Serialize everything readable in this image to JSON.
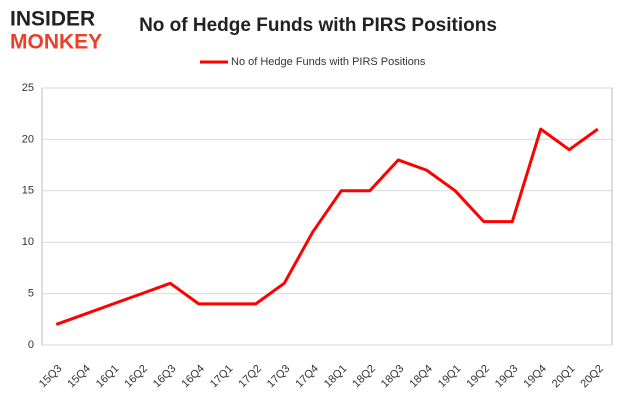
{
  "logo": {
    "line1": "INSIDER",
    "line2": "MONKEY"
  },
  "chart_data": {
    "type": "line",
    "title": "No of Hedge Funds with PIRS Positions",
    "categories": [
      "15Q3",
      "15Q4",
      "16Q1",
      "16Q2",
      "16Q3",
      "16Q4",
      "17Q1",
      "17Q2",
      "17Q3",
      "17Q4",
      "18Q1",
      "18Q2",
      "18Q3",
      "18Q4",
      "19Q1",
      "19Q2",
      "19Q3",
      "19Q4",
      "20Q1",
      "20Q2"
    ],
    "series": [
      {
        "name": "No of Hedge Funds with PIRS Positions",
        "color": "#ff0000",
        "values": [
          2,
          3,
          4,
          5,
          6,
          4,
          4,
          4,
          6,
          11,
          15,
          15,
          18,
          17,
          15,
          12,
          12,
          21,
          19,
          21
        ]
      }
    ],
    "ylim": [
      0,
      25
    ],
    "yticks": [
      0,
      5,
      10,
      15,
      20,
      25
    ],
    "grid": true,
    "legend": "top"
  }
}
